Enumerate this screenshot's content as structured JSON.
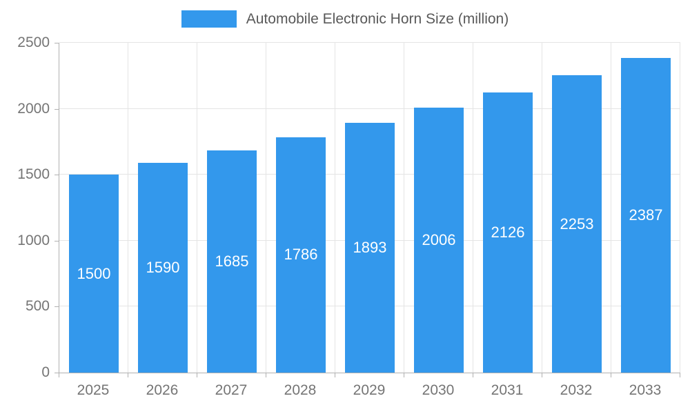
{
  "chart_data": {
    "type": "bar",
    "title": "Automobile Electronic Horn Size (million)",
    "categories": [
      "2025",
      "2026",
      "2027",
      "2028",
      "2029",
      "2030",
      "2031",
      "2032",
      "2033"
    ],
    "values": [
      1500,
      1590,
      1685,
      1786,
      1893,
      2006,
      2126,
      2253,
      2387
    ],
    "xlabel": "",
    "ylabel": "",
    "ylim": [
      0,
      2500
    ],
    "yticks": [
      0,
      500,
      1000,
      1500,
      2000,
      2500
    ],
    "grid": "on",
    "legend_position": "top-center",
    "bar_color": "#3398EC",
    "value_label_color": "#ffffff",
    "tick_label_color": "#757575",
    "legend_text_color": "#595959"
  }
}
